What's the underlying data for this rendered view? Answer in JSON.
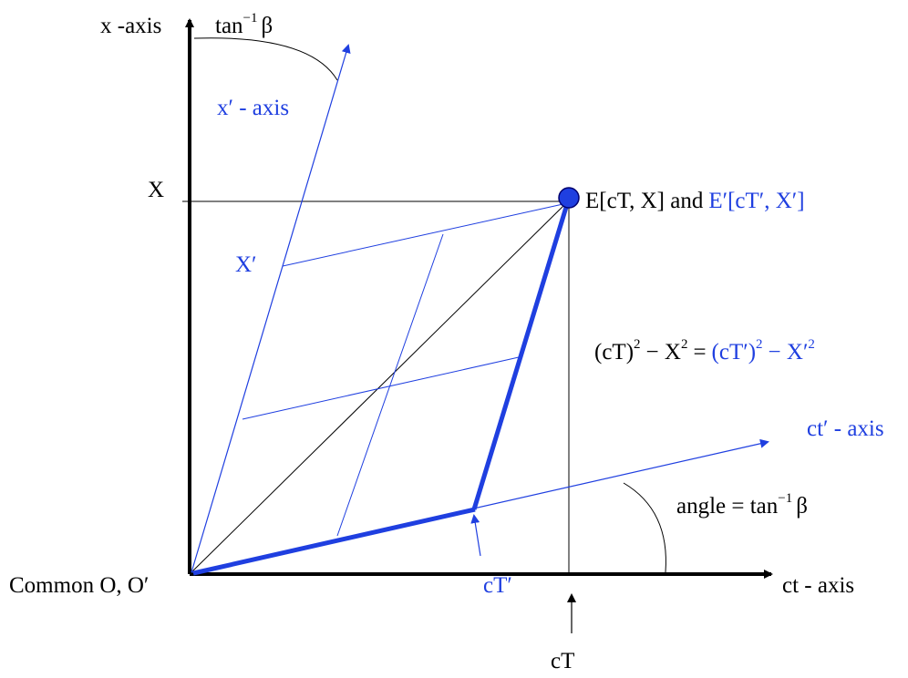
{
  "colors": {
    "black": "#000000",
    "blue": "#1f3fe0"
  },
  "labels": {
    "x_axis": "x -axis",
    "tan_top": "tan",
    "tan_top_exp": "−1",
    "tan_top_beta": "β",
    "x_prime_axis": "x′ - axis",
    "X": "X",
    "X_prime": "X′",
    "event_black": "E[cT, X] and",
    "event_blue": "E′[cT′, X′]",
    "invariant_black_1": "(cT)",
    "invariant_black_2": "− X",
    "invariant_black_3": "=",
    "invariant_blue_1": "(cT′)",
    "invariant_blue_2": "− X′",
    "exp_2": "2",
    "ct_prime_axis": "ct′ - axis",
    "angle_text": "angle = tan",
    "angle_exp": "−1",
    "angle_beta": "β",
    "origin": "Common O, O′",
    "cT_prime": "cT′",
    "ct_axis": "ct - axis",
    "cT": "cT"
  }
}
